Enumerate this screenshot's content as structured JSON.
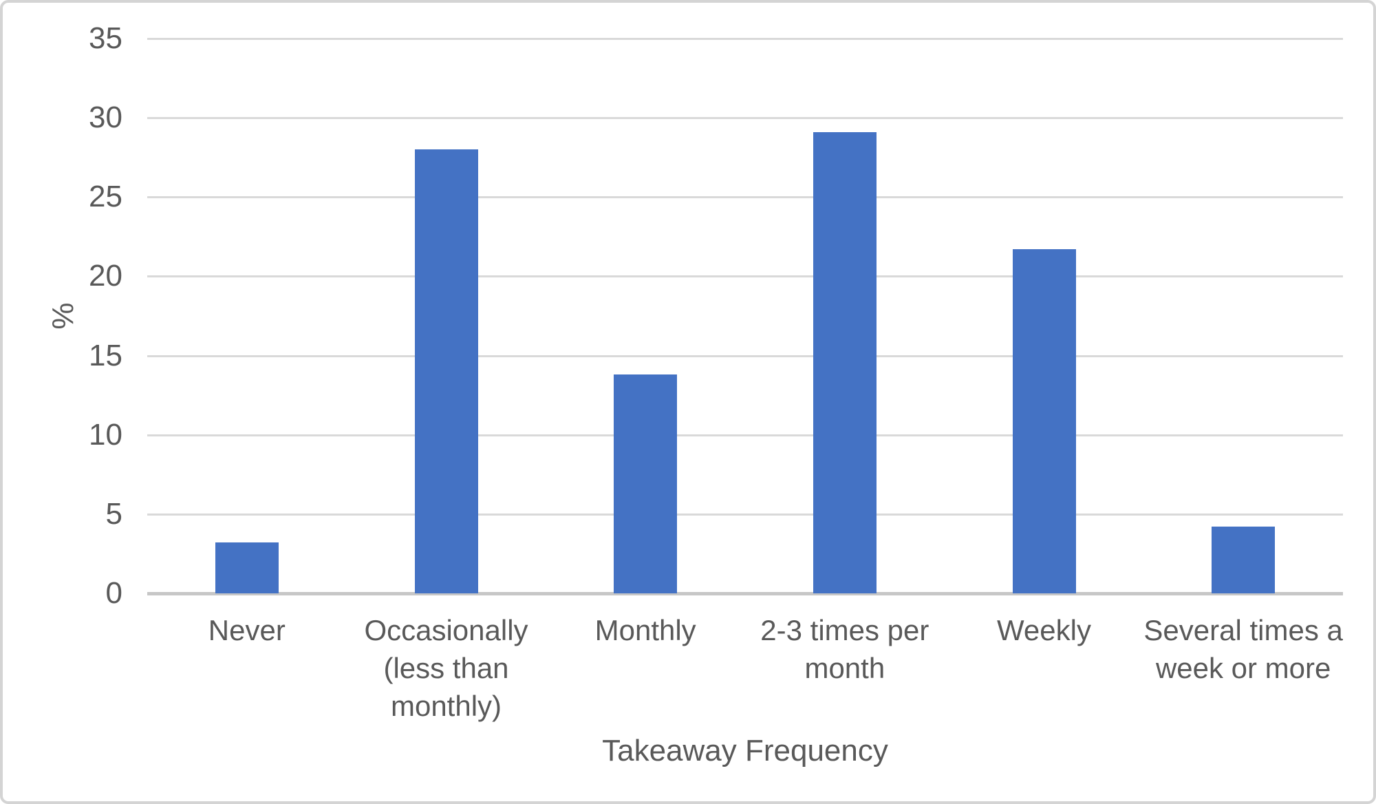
{
  "chart_data": {
    "type": "bar",
    "title": "",
    "categories": [
      "Never",
      "Occasionally (less than monthly)",
      "Monthly",
      "2-3 times per month",
      "Weekly",
      "Several times a week or more"
    ],
    "values": [
      3.2,
      28.0,
      13.8,
      29.1,
      21.7,
      4.2
    ],
    "series_name": "Takeaway Frequency (%)",
    "xlabel": "Takeaway Frequency",
    "ylabel": "%",
    "ylim": [
      0,
      35
    ],
    "ytick_step": 5,
    "yticks": [
      0,
      5,
      10,
      15,
      20,
      25,
      30,
      35
    ],
    "grid": true,
    "legend_position": "none",
    "bar_color": "#4472C4",
    "gridline_color": "#D9D9D9",
    "axis_line_color": "#C7C7C7",
    "text_color": "#595959",
    "frame_border_color": "#D4D4D4",
    "background_color": "#FFFFFF"
  }
}
